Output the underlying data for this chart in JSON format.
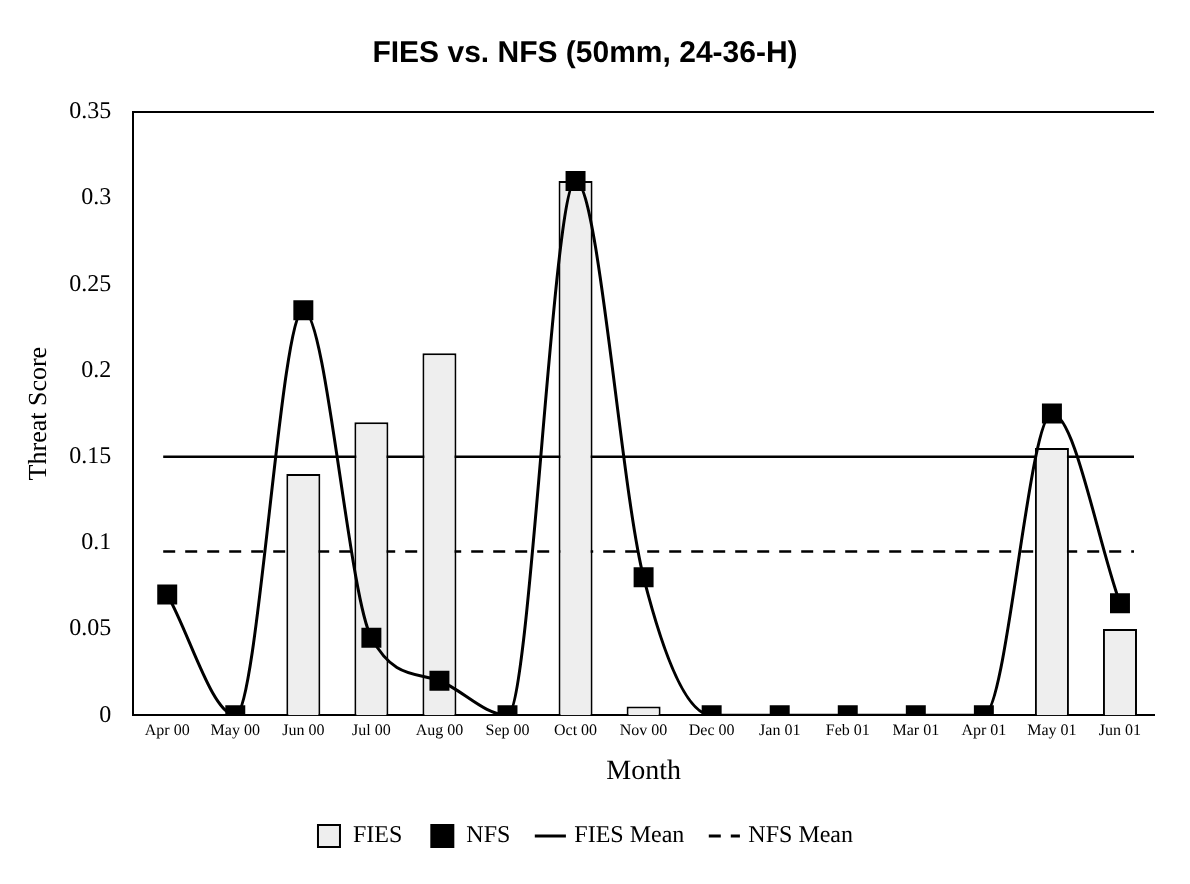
{
  "chart_data": {
    "type": "bar",
    "title": "FIES vs. NFS (50mm, 24-36-H)",
    "xlabel": "Month",
    "ylabel": "Threat Score",
    "categories": [
      "Apr 00",
      "May 00",
      "Jun 00",
      "Jul 00",
      "Aug 00",
      "Sep 00",
      "Oct 00",
      "Nov 00",
      "Dec 00",
      "Jan 01",
      "Feb 01",
      "Mar 01",
      "Apr 01",
      "May 01",
      "Jun 01"
    ],
    "series": [
      {
        "name": "FIES",
        "color": "#eeeeee",
        "values": [
          0,
          0,
          0.14,
          0.17,
          0.21,
          0,
          0.31,
          0.005,
          0,
          0,
          0,
          0,
          0,
          0.155,
          0.05
        ]
      },
      {
        "name": "NFS",
        "type": "line",
        "color": "#000000",
        "marker": "square",
        "values": [
          0.07,
          0,
          0.235,
          0.045,
          0.02,
          0,
          0.31,
          0.08,
          0,
          0,
          0,
          0,
          0,
          0.175,
          0.065
        ]
      }
    ],
    "ref_lines": [
      {
        "axis": "y",
        "value": 0.15,
        "label": "FIES Mean",
        "color": "#000000",
        "line_style": "solid"
      },
      {
        "axis": "y",
        "value": 0.095,
        "label": "NFS Mean",
        "color": "#000000",
        "line_style": "dashed"
      }
    ],
    "ylim": [
      0,
      0.35
    ],
    "yticks": [
      0,
      0.05,
      0.1,
      0.15,
      0.2,
      0.25,
      0.3,
      0.35
    ],
    "grid": false,
    "legend": "bottom"
  }
}
